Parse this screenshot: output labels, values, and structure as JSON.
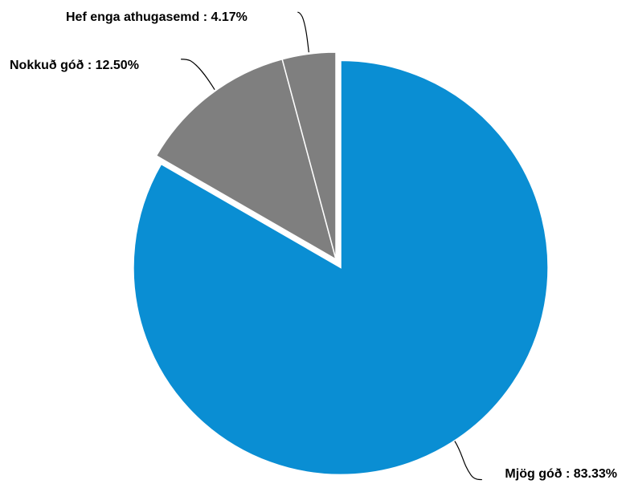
{
  "chart_data": {
    "type": "pie",
    "title": "",
    "slices": [
      {
        "label": "Mjög góð : 83.33%",
        "value": 83.33,
        "color": "#0a8ed3"
      },
      {
        "label": "Nokkuð góð : 12.50%",
        "value": 12.5,
        "color": "#7f7f7f"
      },
      {
        "label": "Hef enga athugasemd : 4.17%",
        "value": 4.17,
        "color": "#7f7f7f"
      }
    ],
    "exploded": [
      "Mjög góð : 83.33%"
    ],
    "slice_border_color": "#ffffff",
    "legend": "none"
  }
}
